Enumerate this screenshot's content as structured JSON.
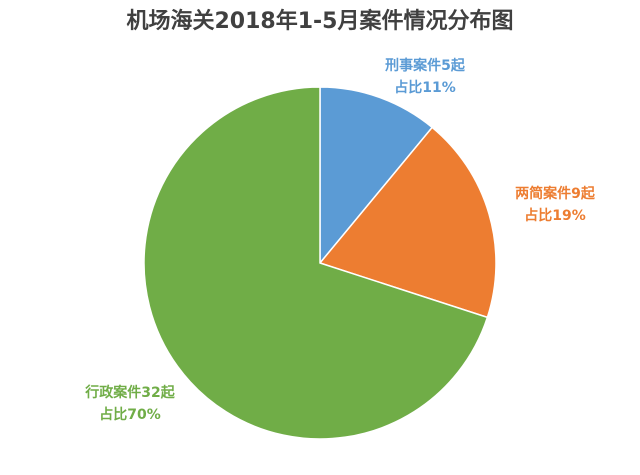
{
  "chart_data": {
    "type": "pie",
    "title": "机场海关2018年1-5月案件情况分布图",
    "categories": [
      "刑事案件5起",
      "两简案件9起",
      "行政案件32起"
    ],
    "values": [
      11,
      19,
      70
    ],
    "value_labels": [
      "占比11%",
      "占比19%",
      "占比70%"
    ],
    "colors": [
      "#5b9bd5",
      "#ed7d31",
      "#70ad47"
    ]
  }
}
